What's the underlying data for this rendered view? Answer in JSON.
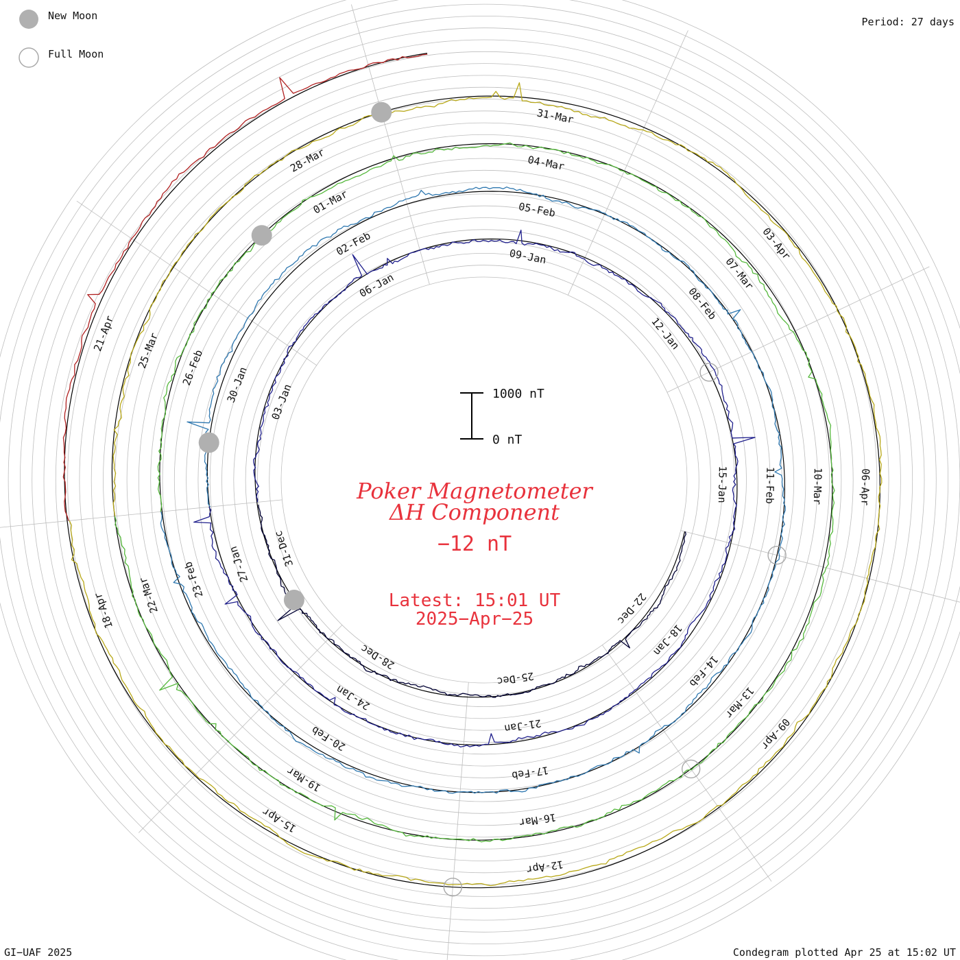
{
  "legend": {
    "new_moon_label": "New Moon",
    "full_moon_label": "Full Moon"
  },
  "period_label": "Period: 27 days",
  "title_line1": "Poker Magnetometer",
  "title_line2": "ΔH Component",
  "current_value": "−12 nT",
  "latest_line1": "Latest: 15:01 UT",
  "latest_line2": "2025−Apr−25",
  "footer_left": "GI−UAF 2025",
  "footer_right": "Condegram plotted Apr 25 at 15:02 UT",
  "colors": {
    "title": "#e8323c",
    "grid": "#bdbdbd",
    "baseline": "#000000",
    "moon_new_fill": "#b0b0b0",
    "moon_full_stroke": "#a8a8a8"
  },
  "chart_data": {
    "type": "line",
    "projection": "polar spiral condegram",
    "period_days": 27,
    "scale_bar": {
      "top_label": "1000 nT",
      "bottom_label": "0 nT",
      "value_nT": 1000
    },
    "series": [
      {
        "color": "#000033",
        "date_labels": [
          "22-Dec",
          "25-Dec",
          "28-Dec",
          "31-Dec"
        ]
      },
      {
        "color": "#1f1f8c",
        "date_labels": [
          "03-Jan",
          "06-Jan",
          "09-Jan",
          "12-Jan",
          "15-Jan",
          "18-Jan",
          "21-Jan",
          "24-Jan",
          "27-Jan"
        ]
      },
      {
        "color": "#2f78b0",
        "date_labels": [
          "30-Jan",
          "02-Feb",
          "05-Feb",
          "08-Feb",
          "11-Feb",
          "14-Feb",
          "17-Feb",
          "20-Feb",
          "23-Feb"
        ]
      },
      {
        "color": "#55b83c",
        "date_labels": [
          "26-Feb",
          "01-Mar",
          "04-Mar",
          "07-Mar",
          "10-Mar",
          "13-Mar",
          "16-Mar",
          "19-Mar",
          "22-Mar"
        ]
      },
      {
        "color": "#b8a818",
        "date_labels": [
          "25-Mar",
          "28-Mar",
          "31-Mar",
          "03-Apr",
          "06-Apr",
          "09-Apr",
          "12-Apr",
          "15-Apr",
          "18-Apr"
        ]
      },
      {
        "color": "#b02020",
        "date_labels": [
          "21-Apr"
        ]
      }
    ],
    "moon_phases": [
      {
        "type": "New Moon",
        "date": "2024-12-30"
      },
      {
        "type": "Full Moon",
        "date": "2025-01-13"
      },
      {
        "type": "New Moon",
        "date": "2025-01-29"
      },
      {
        "type": "Full Moon",
        "date": "2025-02-12"
      },
      {
        "type": "New Moon",
        "date": "2025-02-28"
      },
      {
        "type": "Full Moon",
        "date": "2025-03-14"
      },
      {
        "type": "New Moon",
        "date": "2025-03-29"
      },
      {
        "type": "Full Moon",
        "date": "2025-04-13"
      }
    ]
  }
}
